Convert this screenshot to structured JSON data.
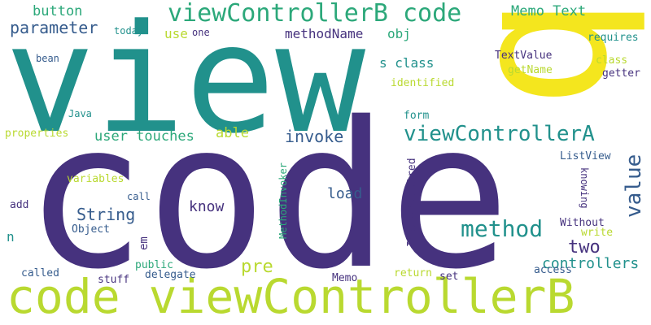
{
  "palette": {
    "purple": "#46327e",
    "teal": "#21918c",
    "green": "#2ca87a",
    "lime": "#b9d930",
    "yellow": "#f4e61e",
    "slate": "#365c8d"
  },
  "words": [
    {
      "text": "code"
    },
    {
      "text": "view"
    },
    {
      "text": "code viewControllerB"
    },
    {
      "text": "b"
    },
    {
      "text": "viewControllerB code"
    },
    {
      "text": "viewControllerA"
    },
    {
      "text": "method"
    },
    {
      "text": "value"
    },
    {
      "text": "parameter"
    },
    {
      "text": "button"
    },
    {
      "text": "Memo Text"
    },
    {
      "text": "invoke"
    },
    {
      "text": "String"
    },
    {
      "text": "user touches"
    },
    {
      "text": "able"
    },
    {
      "text": "methodName"
    },
    {
      "text": "obj"
    },
    {
      "text": "s class"
    },
    {
      "text": "identified"
    },
    {
      "text": "TextValue"
    },
    {
      "text": "getName"
    },
    {
      "text": "requires"
    },
    {
      "text": "class"
    },
    {
      "text": "getter"
    },
    {
      "text": "use"
    },
    {
      "text": "one"
    },
    {
      "text": "today"
    },
    {
      "text": "bean"
    },
    {
      "text": "Java"
    },
    {
      "text": "properties"
    },
    {
      "text": "form"
    },
    {
      "text": "ListView"
    },
    {
      "text": "knowing"
    },
    {
      "text": "know"
    },
    {
      "text": "load"
    },
    {
      "text": "pre"
    },
    {
      "text": "two"
    },
    {
      "text": "controllers"
    },
    {
      "text": "variables"
    },
    {
      "text": "add"
    },
    {
      "text": "call"
    },
    {
      "text": "n"
    },
    {
      "text": "Object"
    },
    {
      "text": "em"
    },
    {
      "text": "public"
    },
    {
      "text": "called"
    },
    {
      "text": "stuff"
    },
    {
      "text": "delegate"
    },
    {
      "text": "Memo"
    },
    {
      "text": "return"
    },
    {
      "text": "set"
    },
    {
      "text": "access"
    },
    {
      "text": "Without"
    },
    {
      "text": "write"
    },
    {
      "text": "MethodInvoker"
    },
    {
      "text": "InvokeRequired"
    }
  ]
}
